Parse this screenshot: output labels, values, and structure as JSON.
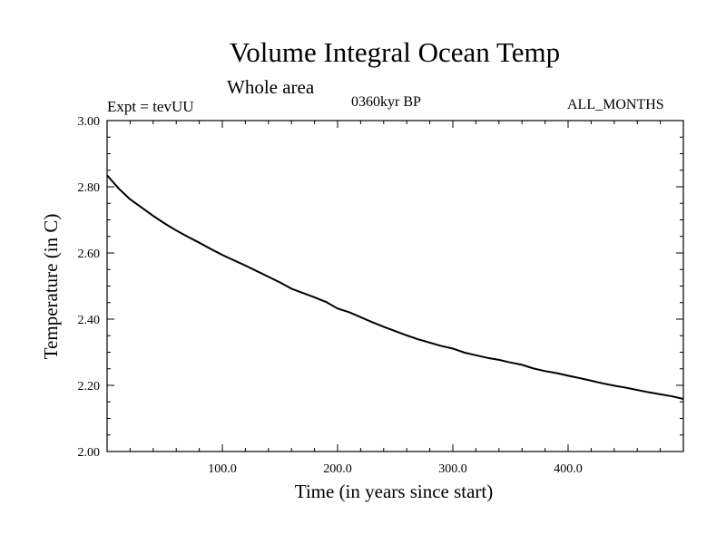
{
  "header": {
    "title": "Volume Integral Ocean Temp",
    "subtitle": "Whole area",
    "expt": "Expt = tevUU",
    "period": "0360kyr BP",
    "months": "ALL_MONTHS"
  },
  "chart_data": {
    "type": "line",
    "title": "Volume Integral Ocean Temp",
    "subtitle": "Whole area",
    "xlabel": "Time (in years since start)",
    "ylabel": "Temperature (in C)",
    "xlim": [
      0,
      500
    ],
    "ylim": [
      2.0,
      3.0
    ],
    "xticks": [
      100,
      200,
      300,
      400
    ],
    "xtick_labels": [
      "100.0",
      "200.0",
      "300.0",
      "400.0"
    ],
    "yticks": [
      2.0,
      2.2,
      2.4,
      2.6,
      2.8,
      3.0
    ],
    "ytick_labels": [
      "2.00",
      "2.20",
      "2.40",
      "2.60",
      "2.80",
      "3.00"
    ],
    "grid": false,
    "series": [
      {
        "color": "#000000",
        "x": [
          0,
          10,
          20,
          30,
          40,
          50,
          60,
          70,
          80,
          90,
          100,
          110,
          120,
          130,
          140,
          150,
          160,
          170,
          180,
          190,
          200,
          210,
          220,
          230,
          240,
          250,
          260,
          270,
          280,
          290,
          300,
          310,
          320,
          330,
          340,
          350,
          360,
          370,
          380,
          390,
          400,
          410,
          420,
          430,
          440,
          450,
          460,
          470,
          480,
          490,
          500
        ],
        "y": [
          2.835,
          2.795,
          2.762,
          2.737,
          2.712,
          2.689,
          2.668,
          2.649,
          2.631,
          2.612,
          2.594,
          2.578,
          2.562,
          2.545,
          2.528,
          2.511,
          2.492,
          2.479,
          2.466,
          2.452,
          2.432,
          2.421,
          2.406,
          2.391,
          2.377,
          2.364,
          2.351,
          2.339,
          2.329,
          2.319,
          2.311,
          2.299,
          2.291,
          2.283,
          2.277,
          2.269,
          2.262,
          2.251,
          2.243,
          2.237,
          2.229,
          2.222,
          2.214,
          2.206,
          2.199,
          2.193,
          2.186,
          2.179,
          2.173,
          2.167,
          2.159
        ]
      }
    ]
  }
}
